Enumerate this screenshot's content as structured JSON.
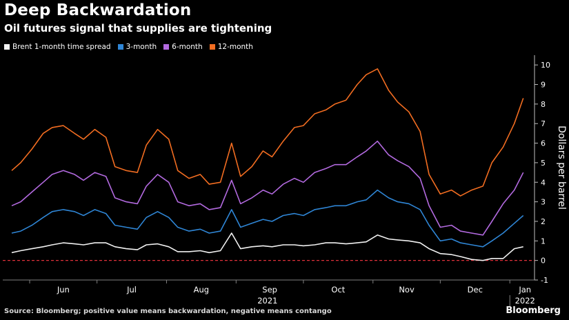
{
  "header": {
    "title": "Deep Backwardation",
    "subtitle": "Oil futures signal that supplies are tightening"
  },
  "legend": [
    {
      "label": "Brent 1-month time spread",
      "color": "#f2f2f2"
    },
    {
      "label": "3-month",
      "color": "#2f86d6"
    },
    {
      "label": "6-month",
      "color": "#b36ae0"
    },
    {
      "label": "12-month",
      "color": "#f26d21"
    }
  ],
  "footer": {
    "source": "Source: Bloomberg; positive value means backwardation, negative means contango",
    "logo": "Bloomberg"
  },
  "chart_data": {
    "type": "line",
    "ylabel": "Dollars per barrel",
    "ylim": [
      -1,
      10.5
    ],
    "yticks": [
      -1,
      0,
      1,
      2,
      3,
      4,
      5,
      6,
      7,
      8,
      9,
      10
    ],
    "x_tick_labels": [
      "Jun",
      "Jul",
      "Aug",
      "Sep",
      "Oct",
      "Nov",
      "Dec",
      "Jan"
    ],
    "x_year_labels": [
      "2021",
      "2022"
    ],
    "zero_line": {
      "value": 0,
      "color": "#e0303a",
      "style": "dashed"
    },
    "x": [
      "2021-05-24",
      "2021-05-28",
      "2021-06-02",
      "2021-06-07",
      "2021-06-11",
      "2021-06-16",
      "2021-06-21",
      "2021-06-25",
      "2021-06-30",
      "2021-07-05",
      "2021-07-09",
      "2021-07-14",
      "2021-07-19",
      "2021-07-23",
      "2021-07-28",
      "2021-08-02",
      "2021-08-06",
      "2021-08-11",
      "2021-08-16",
      "2021-08-20",
      "2021-08-25",
      "2021-08-30",
      "2021-09-03",
      "2021-09-08",
      "2021-09-13",
      "2021-09-17",
      "2021-09-22",
      "2021-09-27",
      "2021-10-01",
      "2021-10-06",
      "2021-10-11",
      "2021-10-15",
      "2021-10-20",
      "2021-10-25",
      "2021-10-29",
      "2021-11-03",
      "2021-11-08",
      "2021-11-12",
      "2021-11-17",
      "2021-11-22",
      "2021-11-26",
      "2021-12-01",
      "2021-12-06",
      "2021-12-10",
      "2021-12-15",
      "2021-12-20",
      "2021-12-24",
      "2021-12-29",
      "2022-01-03",
      "2022-01-07"
    ],
    "series": [
      {
        "name": "Brent 1-month time spread",
        "color": "#f2f2f2",
        "values": [
          0.4,
          0.5,
          0.6,
          0.7,
          0.8,
          0.9,
          0.85,
          0.8,
          0.9,
          0.9,
          0.7,
          0.6,
          0.55,
          0.8,
          0.85,
          0.7,
          0.45,
          0.45,
          0.5,
          0.4,
          0.5,
          1.4,
          0.6,
          0.7,
          0.75,
          0.7,
          0.8,
          0.8,
          0.75,
          0.8,
          0.9,
          0.9,
          0.85,
          0.9,
          0.95,
          1.3,
          1.1,
          1.05,
          1.0,
          0.9,
          0.6,
          0.35,
          0.3,
          0.2,
          0.05,
          0.0,
          0.1,
          0.1,
          0.6,
          0.7
        ]
      },
      {
        "name": "3-month",
        "color": "#2f86d6",
        "values": [
          1.4,
          1.5,
          1.8,
          2.2,
          2.5,
          2.6,
          2.5,
          2.3,
          2.6,
          2.4,
          1.8,
          1.7,
          1.6,
          2.2,
          2.5,
          2.2,
          1.7,
          1.5,
          1.6,
          1.4,
          1.5,
          2.6,
          1.7,
          1.9,
          2.1,
          2.0,
          2.3,
          2.4,
          2.3,
          2.6,
          2.7,
          2.8,
          2.8,
          3.0,
          3.1,
          3.6,
          3.2,
          3.0,
          2.9,
          2.6,
          1.8,
          1.0,
          1.1,
          0.9,
          0.8,
          0.7,
          1.0,
          1.4,
          1.9,
          2.3
        ]
      },
      {
        "name": "6-month",
        "color": "#b36ae0",
        "values": [
          2.8,
          3.0,
          3.5,
          4.0,
          4.4,
          4.6,
          4.4,
          4.1,
          4.5,
          4.3,
          3.2,
          3.0,
          2.9,
          3.8,
          4.4,
          4.0,
          3.0,
          2.8,
          2.9,
          2.6,
          2.7,
          4.1,
          2.9,
          3.2,
          3.6,
          3.4,
          3.9,
          4.2,
          4.0,
          4.5,
          4.7,
          4.9,
          4.9,
          5.3,
          5.6,
          6.1,
          5.4,
          5.1,
          4.8,
          4.2,
          2.8,
          1.7,
          1.8,
          1.5,
          1.4,
          1.3,
          2.0,
          2.9,
          3.6,
          4.5
        ]
      },
      {
        "name": "12-month",
        "color": "#f26d21",
        "values": [
          4.6,
          5.0,
          5.7,
          6.5,
          6.8,
          6.9,
          6.5,
          6.2,
          6.7,
          6.3,
          4.8,
          4.6,
          4.5,
          5.9,
          6.7,
          6.2,
          4.6,
          4.2,
          4.4,
          3.9,
          4.0,
          6.0,
          4.3,
          4.8,
          5.6,
          5.3,
          6.1,
          6.8,
          6.9,
          7.5,
          7.7,
          8.0,
          8.2,
          9.0,
          9.5,
          9.8,
          8.7,
          8.1,
          7.6,
          6.6,
          4.4,
          3.4,
          3.6,
          3.3,
          3.6,
          3.8,
          5.0,
          5.8,
          7.0,
          8.3
        ]
      }
    ]
  }
}
